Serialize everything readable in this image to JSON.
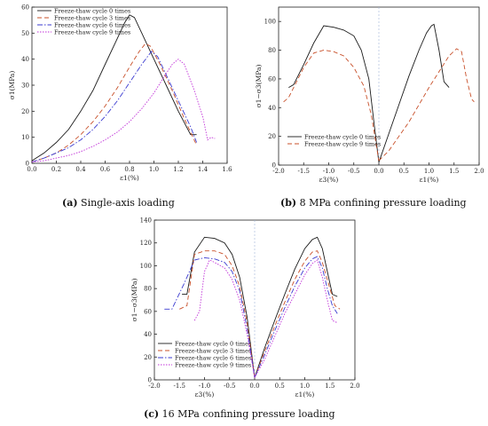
{
  "captions": {
    "a": {
      "tag": "(a)",
      "text": " Single-axis loading"
    },
    "b": {
      "tag": "(b)",
      "text": " 8 MPa confining pressure loading"
    },
    "c": {
      "tag": "(c)",
      "text": " 16 MPa confining pressure loading"
    }
  },
  "styles": {
    "0": {
      "color": "#1a1a1a",
      "dash": ""
    },
    "3": {
      "color": "#c8502a",
      "dash": "5 3"
    },
    "6": {
      "color": "#3a3ad0",
      "dash": "6 2 1.5 2"
    },
    "9": {
      "color": "#c030d8",
      "dash": "1.5 1.5"
    }
  },
  "chart_data": [
    {
      "type": "line",
      "id": "a",
      "ylabel": "σ1(MPa)",
      "xlabel": "ε1(%)",
      "xlim": [
        0,
        1.6
      ],
      "ylim": [
        0,
        60
      ],
      "xticks": [
        "0.0",
        "0.2",
        "0.4",
        "0.6",
        "0.8",
        "1.0",
        "1.2",
        "1.4",
        "1.6"
      ],
      "yticks": [
        "0",
        "10",
        "20",
        "30",
        "40",
        "50",
        "60"
      ],
      "legend_position": "top-left",
      "series": [
        {
          "name": "Freeze-thaw cycle 0 times",
          "style": "0",
          "points": [
            [
              0,
              1
            ],
            [
              0.1,
              4
            ],
            [
              0.2,
              8
            ],
            [
              0.3,
              13
            ],
            [
              0.4,
              20
            ],
            [
              0.5,
              28
            ],
            [
              0.6,
              38
            ],
            [
              0.7,
              48
            ],
            [
              0.76,
              54
            ],
            [
              0.8,
              57
            ],
            [
              0.84,
              56
            ],
            [
              0.9,
              50
            ],
            [
              1.0,
              40
            ],
            [
              1.1,
              30
            ],
            [
              1.2,
              20
            ],
            [
              1.3,
              11
            ],
            [
              1.35,
              11
            ]
          ]
        },
        {
          "name": "Freeze-thaw cycle 3 times",
          "style": "3",
          "points": [
            [
              0,
              0.5
            ],
            [
              0.1,
              2
            ],
            [
              0.2,
              4
            ],
            [
              0.3,
              7
            ],
            [
              0.4,
              11
            ],
            [
              0.5,
              16
            ],
            [
              0.6,
              22
            ],
            [
              0.7,
              29
            ],
            [
              0.8,
              37
            ],
            [
              0.88,
              43
            ],
            [
              0.93,
              46
            ],
            [
              0.97,
              45
            ],
            [
              1.05,
              38
            ],
            [
              1.15,
              28
            ],
            [
              1.25,
              17
            ],
            [
              1.35,
              7
            ]
          ]
        },
        {
          "name": "Freeze-thaw cycle 6 times",
          "style": "6",
          "points": [
            [
              0,
              0.5
            ],
            [
              0.1,
              2
            ],
            [
              0.2,
              4
            ],
            [
              0.3,
              6
            ],
            [
              0.4,
              9
            ],
            [
              0.5,
              13
            ],
            [
              0.6,
              18
            ],
            [
              0.7,
              24
            ],
            [
              0.8,
              31
            ],
            [
              0.9,
              38
            ],
            [
              0.98,
              43
            ],
            [
              1.03,
              41
            ],
            [
              1.1,
              34
            ],
            [
              1.2,
              24
            ],
            [
              1.3,
              14
            ],
            [
              1.35,
              8
            ]
          ]
        },
        {
          "name": "Freeze-thaw cycle 9 times",
          "style": "9",
          "points": [
            [
              0,
              0.5
            ],
            [
              0.1,
              1
            ],
            [
              0.2,
              2
            ],
            [
              0.3,
              3
            ],
            [
              0.4,
              4.5
            ],
            [
              0.5,
              6.5
            ],
            [
              0.6,
              9
            ],
            [
              0.7,
              12
            ],
            [
              0.8,
              16
            ],
            [
              0.9,
              21
            ],
            [
              1.0,
              27
            ],
            [
              1.08,
              33
            ],
            [
              1.15,
              38
            ],
            [
              1.2,
              40
            ],
            [
              1.25,
              38
            ],
            [
              1.33,
              28
            ],
            [
              1.4,
              18
            ],
            [
              1.44,
              9
            ],
            [
              1.47,
              10
            ],
            [
              1.5,
              9.5
            ]
          ]
        }
      ]
    },
    {
      "type": "line",
      "id": "b",
      "ylabel": "σ1−σ3(MPa)",
      "xlabel_left": "ε3(%)",
      "xlabel_right": "ε1(%)",
      "xlim": [
        -2.0,
        2.0
      ],
      "ylim": [
        0,
        110
      ],
      "xticks": [
        "-2.0",
        "-1.5",
        "-1.0",
        "-0.5",
        "0.0",
        "0.5",
        "1.0",
        "1.5",
        "2.0"
      ],
      "yticks": [
        "0",
        "20",
        "40",
        "60",
        "80",
        "100"
      ],
      "legend_position": "bottom-left",
      "series": [
        {
          "name": "Freeze-thaw cycle 0 times",
          "style": "0",
          "points": [
            [
              -1.8,
              54
            ],
            [
              -1.7,
              56
            ],
            [
              -1.5,
              70
            ],
            [
              -1.3,
              85
            ],
            [
              -1.1,
              97
            ],
            [
              -0.9,
              96
            ],
            [
              -0.7,
              94
            ],
            [
              -0.5,
              90
            ],
            [
              -0.35,
              80
            ],
            [
              -0.2,
              60
            ],
            [
              -0.1,
              30
            ],
            [
              0,
              2
            ]
          ],
          "points_right": [
            [
              0,
              2
            ],
            [
              0.2,
              22
            ],
            [
              0.4,
              42
            ],
            [
              0.6,
              62
            ],
            [
              0.8,
              80
            ],
            [
              0.95,
              92
            ],
            [
              1.05,
              97
            ],
            [
              1.1,
              98
            ],
            [
              1.2,
              80
            ],
            [
              1.3,
              58
            ],
            [
              1.4,
              54
            ]
          ]
        },
        {
          "name": "Freeze-thaw cycle 9 times",
          "style": "3",
          "points": [
            [
              -1.9,
              44
            ],
            [
              -1.8,
              47
            ],
            [
              -1.5,
              68
            ],
            [
              -1.3,
              78
            ],
            [
              -1.1,
              80
            ],
            [
              -0.9,
              79
            ],
            [
              -0.7,
              76
            ],
            [
              -0.5,
              68
            ],
            [
              -0.3,
              55
            ],
            [
              -0.15,
              35
            ],
            [
              0,
              3
            ]
          ],
          "points_right": [
            [
              0,
              3
            ],
            [
              0.2,
              10
            ],
            [
              0.4,
              20
            ],
            [
              0.6,
              30
            ],
            [
              0.8,
              42
            ],
            [
              1.0,
              54
            ],
            [
              1.2,
              65
            ],
            [
              1.4,
              76
            ],
            [
              1.55,
              81
            ],
            [
              1.65,
              79
            ],
            [
              1.75,
              60
            ],
            [
              1.85,
              46
            ],
            [
              1.9,
              44
            ]
          ]
        }
      ]
    },
    {
      "type": "line",
      "id": "c",
      "ylabel": "σ1−σ3(MPa)",
      "xlabel_left": "ε3(%)",
      "xlabel_right": "ε1(%)",
      "xlim": [
        -2.0,
        2.0
      ],
      "ylim": [
        0,
        140
      ],
      "xticks": [
        "-2.0",
        "-1.5",
        "-1.0",
        "-0.5",
        "0.0",
        "0.5",
        "1.0",
        "1.5",
        "2.0"
      ],
      "yticks": [
        "0",
        "20",
        "40",
        "60",
        "80",
        "100",
        "120",
        "140"
      ],
      "legend_position": "bottom-left",
      "series": [
        {
          "name": "Freeze-thaw cycle 0 times",
          "style": "0",
          "points": [
            [
              -1.45,
              75
            ],
            [
              -1.35,
              75
            ],
            [
              -1.2,
              112
            ],
            [
              -1.0,
              125
            ],
            [
              -0.8,
              124
            ],
            [
              -0.6,
              120
            ],
            [
              -0.45,
              110
            ],
            [
              -0.3,
              90
            ],
            [
              -0.15,
              55
            ],
            [
              0,
              2
            ]
          ],
          "points_right": [
            [
              0,
              2
            ],
            [
              0.2,
              28
            ],
            [
              0.4,
              52
            ],
            [
              0.6,
              75
            ],
            [
              0.8,
              97
            ],
            [
              1.0,
              115
            ],
            [
              1.15,
              123
            ],
            [
              1.25,
              125
            ],
            [
              1.35,
              115
            ],
            [
              1.45,
              95
            ],
            [
              1.55,
              75
            ],
            [
              1.65,
              73
            ]
          ]
        },
        {
          "name": "Freeze-thaw cycle 3 times",
          "style": "3",
          "points": [
            [
              -1.5,
              62
            ],
            [
              -1.35,
              65
            ],
            [
              -1.2,
              110
            ],
            [
              -1.0,
              113
            ],
            [
              -0.8,
              113
            ],
            [
              -0.6,
              110
            ],
            [
              -0.45,
              100
            ],
            [
              -0.3,
              82
            ],
            [
              -0.15,
              50
            ],
            [
              0,
              2
            ]
          ],
          "points_right": [
            [
              0,
              2
            ],
            [
              0.2,
              25
            ],
            [
              0.4,
              47
            ],
            [
              0.6,
              68
            ],
            [
              0.8,
              88
            ],
            [
              1.0,
              104
            ],
            [
              1.15,
              112
            ],
            [
              1.25,
              113
            ],
            [
              1.35,
              103
            ],
            [
              1.5,
              80
            ],
            [
              1.6,
              65
            ],
            [
              1.7,
              62
            ]
          ]
        },
        {
          "name": "Freeze-thaw cycle 6 times",
          "style": "6",
          "points": [
            [
              -1.8,
              62
            ],
            [
              -1.65,
              62
            ],
            [
              -1.4,
              85
            ],
            [
              -1.2,
              105
            ],
            [
              -1.0,
              107
            ],
            [
              -0.8,
              106
            ],
            [
              -0.6,
              103
            ],
            [
              -0.45,
              95
            ],
            [
              -0.3,
              78
            ],
            [
              -0.15,
              45
            ],
            [
              0,
              2
            ]
          ],
          "points_right": [
            [
              0,
              2
            ],
            [
              0.2,
              22
            ],
            [
              0.4,
              43
            ],
            [
              0.6,
              63
            ],
            [
              0.8,
              82
            ],
            [
              1.0,
              98
            ],
            [
              1.15,
              106
            ],
            [
              1.25,
              108
            ],
            [
              1.35,
              98
            ],
            [
              1.45,
              80
            ],
            [
              1.55,
              65
            ],
            [
              1.65,
              58
            ]
          ]
        },
        {
          "name": "Freeze-thaw cycle 9 times",
          "style": "9",
          "points": [
            [
              -1.2,
              52
            ],
            [
              -1.1,
              60
            ],
            [
              -1.0,
              95
            ],
            [
              -0.9,
              105
            ],
            [
              -0.8,
              103
            ],
            [
              -0.6,
              98
            ],
            [
              -0.45,
              88
            ],
            [
              -0.3,
              70
            ],
            [
              -0.15,
              40
            ],
            [
              0,
              2
            ]
          ],
          "points_right": [
            [
              0,
              2
            ],
            [
              0.2,
              18
            ],
            [
              0.4,
              38
            ],
            [
              0.6,
              58
            ],
            [
              0.8,
              75
            ],
            [
              1.0,
              92
            ],
            [
              1.15,
              102
            ],
            [
              1.25,
              105
            ],
            [
              1.35,
              90
            ],
            [
              1.45,
              70
            ],
            [
              1.55,
              52
            ],
            [
              1.65,
              50
            ]
          ]
        }
      ]
    }
  ]
}
